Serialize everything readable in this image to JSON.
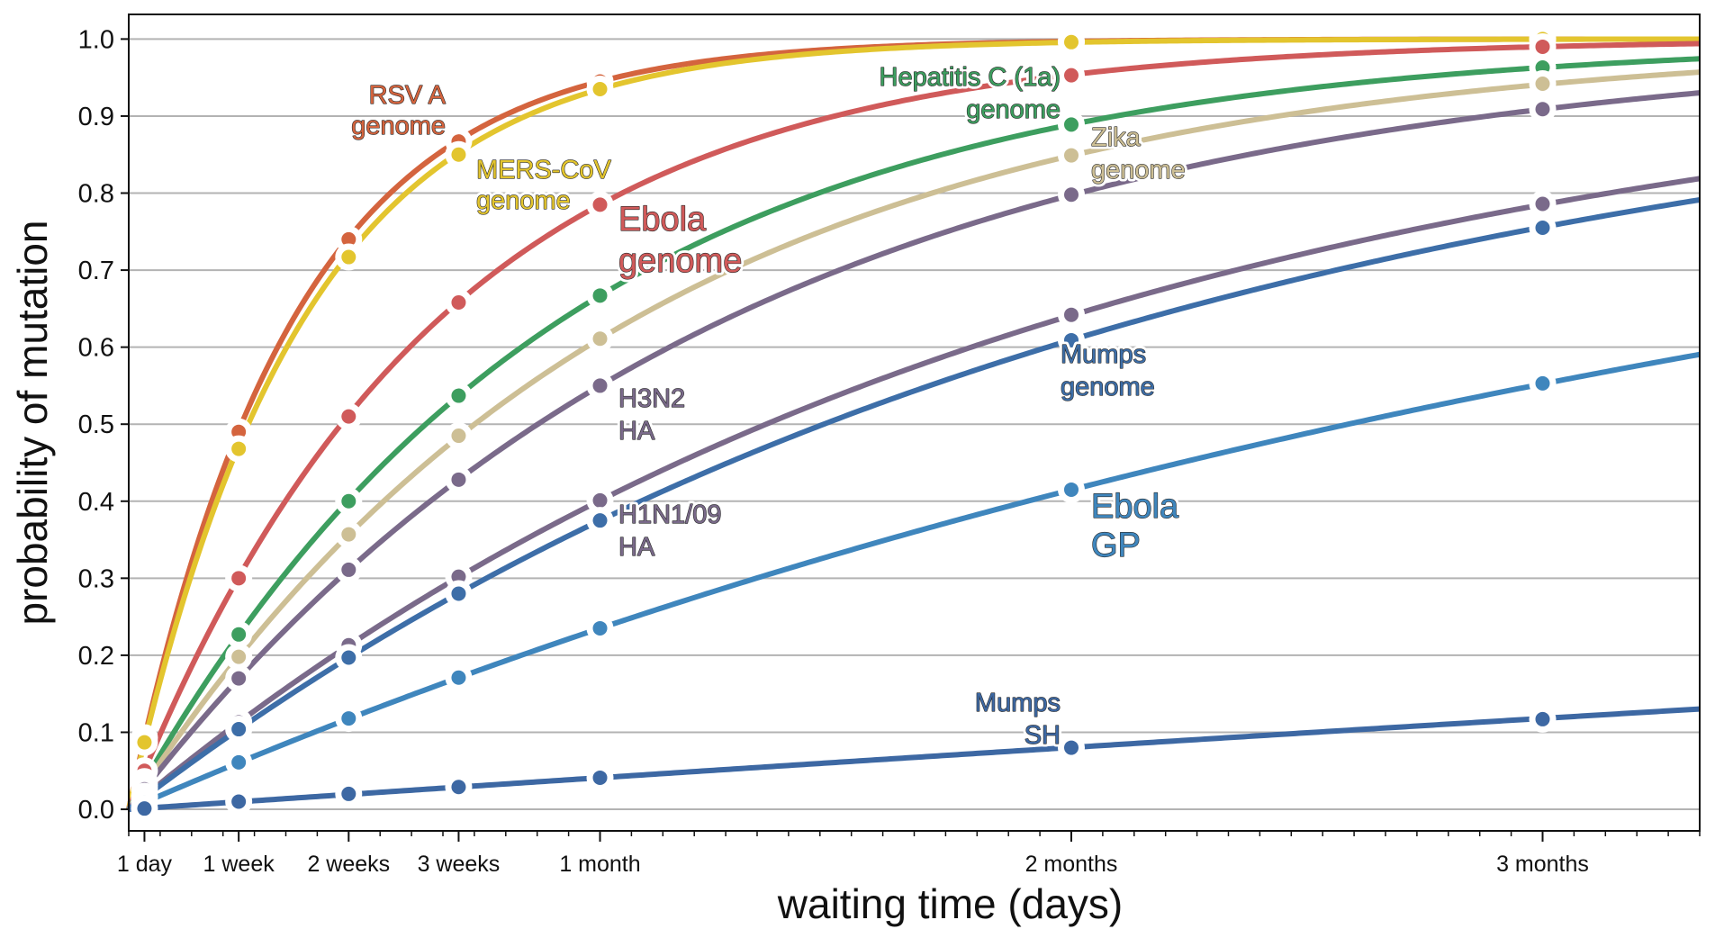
{
  "chart_data": {
    "type": "line",
    "title": "",
    "xlabel": "waiting time (days)",
    "ylabel": "probability of mutation",
    "xlim": [
      0,
      100
    ],
    "ylim": [
      -0.028,
      1.032
    ],
    "grid": "horizontal",
    "legend": "none (inline labels)",
    "yticks": [
      0.0,
      0.1,
      0.2,
      0.3,
      0.4,
      0.5,
      0.6,
      0.7,
      0.8,
      0.9,
      1.0
    ],
    "ytick_labels": [
      "0.0",
      "0.1",
      "0.2",
      "0.3",
      "0.4",
      "0.5",
      "0.6",
      "0.7",
      "0.8",
      "0.9",
      "1.0"
    ],
    "xticks": [
      1,
      7,
      14,
      21,
      30,
      60,
      90
    ],
    "xtick_labels": [
      "1 day",
      "1 week",
      "2 weeks",
      "3 weeks",
      "1 month",
      "2 months",
      "3 months"
    ],
    "x": [
      1,
      7,
      14,
      21,
      30,
      60,
      90
    ],
    "series": [
      {
        "name": "RSV A genome",
        "label_lines": [
          "RSV A",
          "genome"
        ],
        "color": "#d4643e",
        "label_color": "#d4643e",
        "values": [
          0.093,
          0.49,
          0.74,
          0.867,
          0.945,
          0.997,
          1.0
        ]
      },
      {
        "name": "MERS-CoV genome",
        "label_lines": [
          "MERS-CoV",
          "genome"
        ],
        "color": "#e3c52e",
        "label_color": "#e3c52e",
        "values": [
          0.087,
          0.468,
          0.717,
          0.85,
          0.935,
          0.996,
          1.0
        ]
      },
      {
        "name": "Ebola genome",
        "label_lines": [
          "Ebola",
          "genome"
        ],
        "color": "#d05a5a",
        "label_color": "#d05a5a",
        "values": [
          0.05,
          0.3,
          0.51,
          0.658,
          0.785,
          0.953,
          0.99
        ]
      },
      {
        "name": "Hepatitis C (1a) genome",
        "label_lines": [
          "Hepatitis C (1a)",
          "genome"
        ],
        "color": "#3d9e5f",
        "label_color": "#3d9e5f",
        "values": [
          0.036,
          0.227,
          0.4,
          0.537,
          0.667,
          0.889,
          0.963
        ]
      },
      {
        "name": "Zika genome",
        "label_lines": [
          "Zika",
          "genome"
        ],
        "color": "#cdbf95",
        "label_color": "#cdbf95",
        "values": [
          0.031,
          0.198,
          0.357,
          0.485,
          0.611,
          0.849,
          0.942
        ]
      },
      {
        "name": "H3N2 HA",
        "label_lines": [
          "H3N2",
          "HA"
        ],
        "color": "#7a6a8a",
        "label_color": "#7a6a8a",
        "values": [
          0.026,
          0.17,
          0.311,
          0.428,
          0.55,
          0.798,
          0.909
        ]
      },
      {
        "name": "H1N1/09 HA",
        "label_lines": [
          "H1N1/09",
          "HA"
        ],
        "color": "#7a6a8a",
        "label_color": "#7a6a8a",
        "values": [
          0.017,
          0.113,
          0.213,
          0.302,
          0.401,
          0.642,
          0.786
        ]
      },
      {
        "name": "Mumps genome",
        "label_lines": [
          "Mumps",
          "genome"
        ],
        "color": "#3d6ea8",
        "label_color": "#3d6ea8",
        "values": [
          0.015,
          0.104,
          0.197,
          0.28,
          0.375,
          0.609,
          0.755
        ]
      },
      {
        "name": "Ebola GP",
        "label_lines": [
          "Ebola",
          "GP"
        ],
        "color": "#3f86bd",
        "label_color": "#3f86bd",
        "values": [
          0.009,
          0.061,
          0.118,
          0.171,
          0.235,
          0.415,
          0.553
        ]
      },
      {
        "name": "Mumps SH",
        "label_lines": [
          "Mumps",
          "SH"
        ],
        "color": "#3d68a3",
        "label_color": "#3d68a3",
        "values": [
          0.001,
          0.01,
          0.02,
          0.029,
          0.041,
          0.08,
          0.117
        ]
      }
    ]
  }
}
